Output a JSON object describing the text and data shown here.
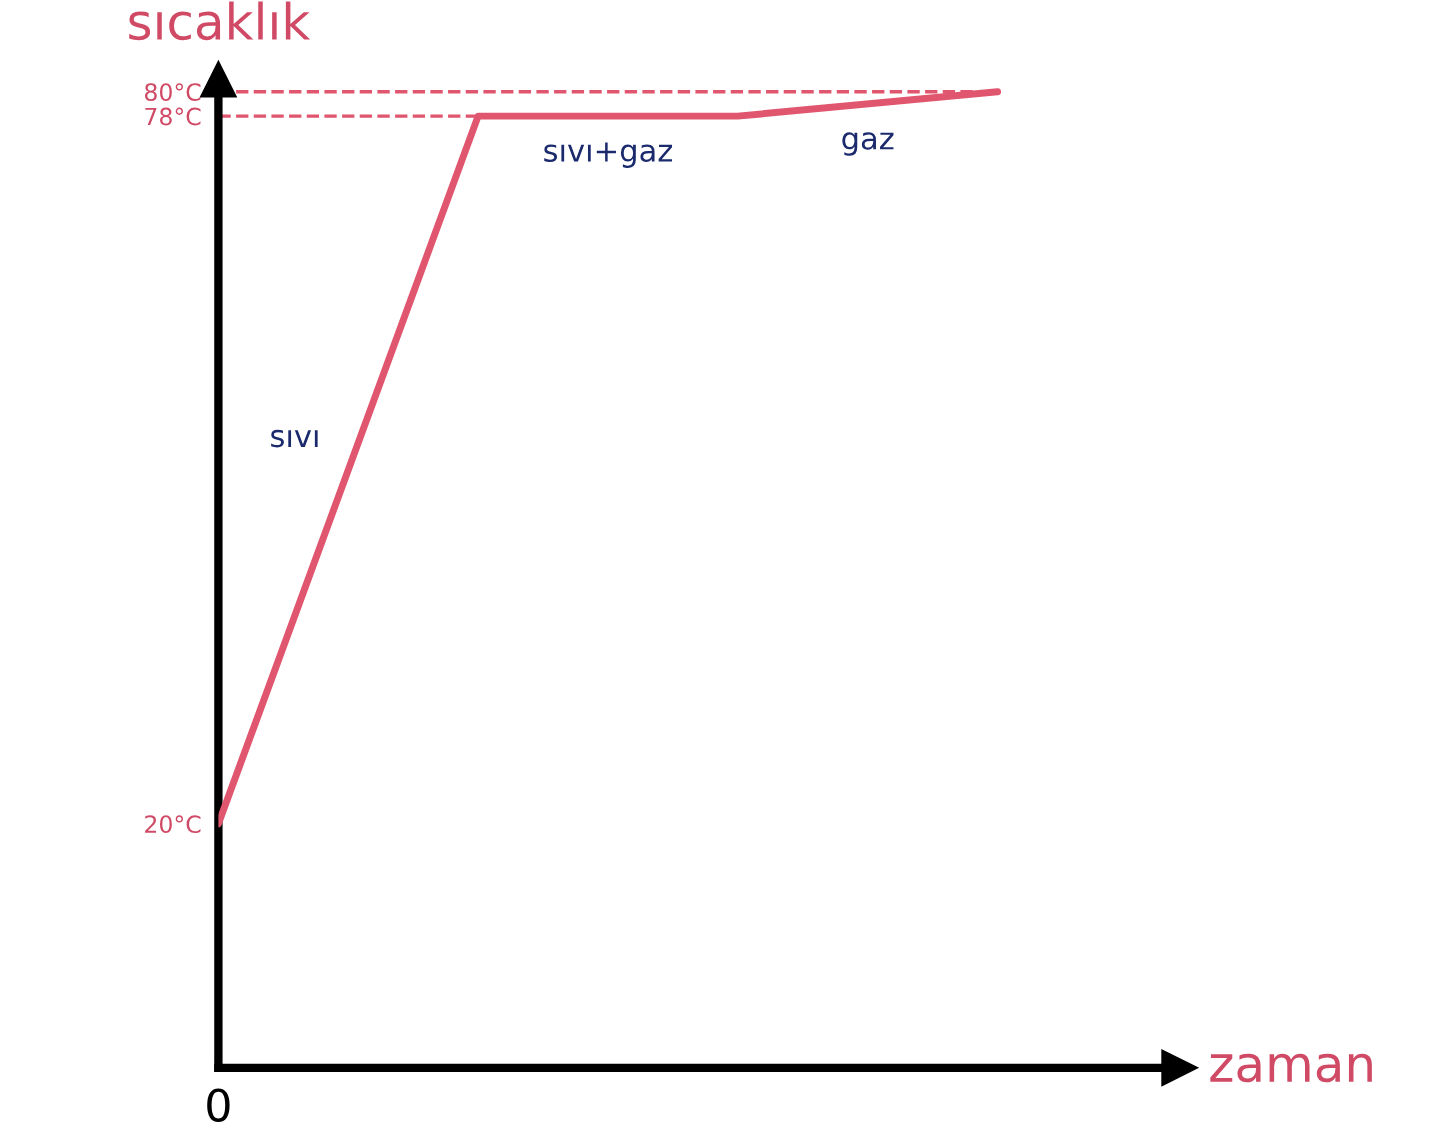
{
  "chart_data": {
    "type": "line",
    "ylabel": "sıcaklık",
    "xlabel": "zaman",
    "categories": [
      null,
      null,
      null,
      null
    ],
    "series": [
      {
        "color": "#e0566e",
        "values": [
          20,
          78,
          78,
          80
        ]
      }
    ],
    "ylim": [
      0,
      81
    ],
    "yticks": [
      {
        "value": 20,
        "label": "20°C"
      },
      {
        "value": 78,
        "label": "78°C"
      },
      {
        "value": 80,
        "label": "80°C"
      }
    ],
    "ref_lines": [
      {
        "axis": "y",
        "value": 78,
        "color": "#e0566e",
        "line_style": "dashed"
      },
      {
        "axis": "y",
        "value": 80,
        "color": "#e0566e",
        "line_style": "dashed"
      }
    ],
    "annotations": [
      "sıvı",
      "sıvı+gaz",
      "gaz",
      "0"
    ],
    "tick_labels": "y",
    "grid": false,
    "marker": "none",
    "line_style": "solid"
  }
}
